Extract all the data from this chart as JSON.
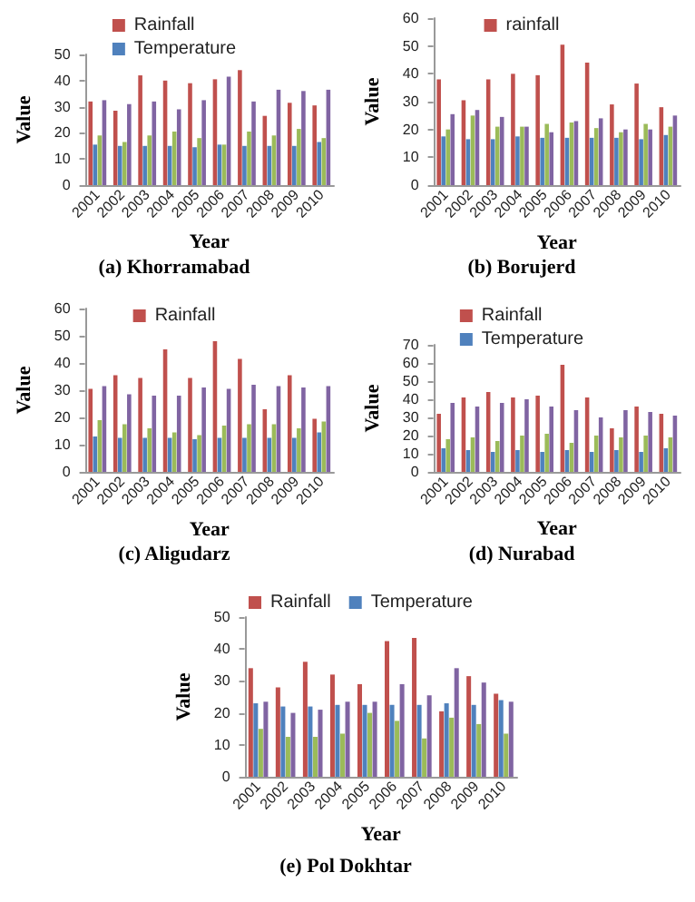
{
  "chart_data": [
    {
      "type": "bar",
      "title": "(a) Khorramabad",
      "xlabel": "Year",
      "ylabel": "Value",
      "categories": [
        "2001",
        "2002",
        "2003",
        "2004",
        "2005",
        "2006",
        "2007",
        "2008",
        "2009",
        "2010"
      ],
      "ylim": [
        0,
        50
      ],
      "yticks": [
        0,
        10,
        20,
        30,
        40,
        50
      ],
      "grid": false,
      "legend": "top",
      "series": [
        {
          "name": "Rainfall",
          "color": "#c0504d",
          "values": [
            32,
            28.5,
            42,
            40,
            39,
            40.5,
            44,
            26.5,
            31.5,
            30.5
          ]
        },
        {
          "name": "Temperature",
          "color": "#4f81bd",
          "values": [
            15.5,
            15,
            15,
            15,
            14.5,
            15.5,
            15,
            15,
            15,
            16.5
          ]
        },
        {
          "color": "#9bbb59",
          "values": [
            19,
            16.5,
            19,
            20.5,
            18,
            15.5,
            20.5,
            19,
            21.5,
            18
          ]
        },
        {
          "color": "#8064a2",
          "values": [
            32.5,
            31,
            32,
            29,
            32.5,
            41.5,
            32,
            36.5,
            36,
            36.5
          ]
        }
      ]
    },
    {
      "type": "bar",
      "title": "(b) Borujerd",
      "xlabel": "Year",
      "ylabel": "Value",
      "categories": [
        "2001",
        "2002",
        "2003",
        "2004",
        "2005",
        "2006",
        "2007",
        "2008",
        "2009",
        "2010"
      ],
      "ylim": [
        0,
        60
      ],
      "yticks": [
        0,
        10,
        20,
        30,
        40,
        50,
        60
      ],
      "grid": false,
      "legend": "top",
      "series": [
        {
          "name": "rainfall",
          "color": "#c0504d",
          "values": [
            38,
            30.5,
            38,
            40,
            39.5,
            50.5,
            44,
            29,
            36.5,
            28
          ]
        },
        {
          "color": "#4f81bd",
          "values": [
            17.5,
            16.5,
            16.5,
            17.5,
            17,
            17,
            17,
            17,
            16.5,
            18
          ]
        },
        {
          "color": "#9bbb59",
          "values": [
            20,
            25,
            21,
            21,
            22,
            22.5,
            20.5,
            19,
            22,
            21
          ]
        },
        {
          "color": "#8064a2",
          "values": [
            25.5,
            27,
            24.5,
            21,
            19,
            23,
            24,
            20,
            20,
            25
          ]
        }
      ]
    },
    {
      "type": "bar",
      "title": "(c) Aligudarz",
      "xlabel": "Year",
      "ylabel": "Value",
      "categories": [
        "2001",
        "2002",
        "2003",
        "2004",
        "2005",
        "2006",
        "2007",
        "2008",
        "2009",
        "2010"
      ],
      "ylim": [
        0,
        60
      ],
      "yticks": [
        0,
        10,
        20,
        30,
        40,
        50,
        60
      ],
      "grid": false,
      "legend": "top",
      "series": [
        {
          "name": "Rainfall",
          "color": "#c0504d",
          "values": [
            30.5,
            35.5,
            34.5,
            45,
            34.5,
            48,
            41.5,
            23,
            35.5,
            19.5
          ]
        },
        {
          "color": "#4f81bd",
          "values": [
            13,
            12.5,
            12.5,
            12.5,
            12,
            12.5,
            12.5,
            12.5,
            12.5,
            14.5
          ]
        },
        {
          "color": "#9bbb59",
          "values": [
            19,
            17.5,
            16,
            14.5,
            13.5,
            17,
            17.5,
            17.5,
            16,
            18.5
          ]
        },
        {
          "color": "#8064a2",
          "values": [
            31.5,
            28.5,
            28,
            28,
            31,
            30.5,
            32,
            31.5,
            31,
            31.5
          ]
        }
      ]
    },
    {
      "type": "bar",
      "title": "(d) Nurabad",
      "xlabel": "Year",
      "ylabel": "Value",
      "categories": [
        "2001",
        "2002",
        "2003",
        "2004",
        "2005",
        "2006",
        "2007",
        "2008",
        "2009",
        "2010"
      ],
      "ylim": [
        0,
        70
      ],
      "yticks": [
        0,
        10,
        20,
        30,
        40,
        50,
        60,
        70
      ],
      "grid": false,
      "legend": "top",
      "series": [
        {
          "name": "Rainfall",
          "color": "#c0504d",
          "values": [
            32,
            41,
            44,
            41,
            42,
            59,
            41,
            24,
            36,
            32
          ]
        },
        {
          "name": "Temperature",
          "color": "#4f81bd",
          "values": [
            13,
            12,
            11,
            12,
            11,
            12,
            11,
            12,
            11,
            13
          ]
        },
        {
          "color": "#9bbb59",
          "values": [
            18,
            19,
            17,
            20,
            21,
            16,
            20,
            19,
            20,
            19
          ]
        },
        {
          "color": "#8064a2",
          "values": [
            38,
            36,
            38,
            40,
            36,
            34,
            30,
            34,
            33,
            31
          ]
        }
      ]
    },
    {
      "type": "bar",
      "title": "(e) Pol Dokhtar",
      "xlabel": "Year",
      "ylabel": "Value",
      "categories": [
        "2001",
        "2002",
        "2003",
        "2004",
        "2005",
        "2006",
        "2007",
        "2008",
        "2009",
        "2010"
      ],
      "ylim": [
        0,
        50
      ],
      "yticks": [
        0,
        10,
        20,
        30,
        40,
        50
      ],
      "grid": false,
      "legend": "top",
      "series": [
        {
          "name": "Rainfall",
          "color": "#c0504d",
          "values": [
            34,
            28,
            36,
            32,
            29,
            42.5,
            43.5,
            20.5,
            31.5,
            26
          ]
        },
        {
          "name": "Temperature",
          "color": "#4f81bd",
          "values": [
            23,
            22,
            22,
            22.5,
            22.5,
            22.5,
            22.5,
            23,
            22.5,
            24
          ]
        },
        {
          "color": "#9bbb59",
          "values": [
            15,
            12.5,
            12.5,
            13.5,
            20,
            17.5,
            12,
            18.5,
            16.5,
            13.5
          ]
        },
        {
          "color": "#8064a2",
          "values": [
            23.5,
            20,
            21,
            23.5,
            23.5,
            29,
            25.5,
            34,
            29.5,
            23.5
          ]
        }
      ]
    }
  ]
}
